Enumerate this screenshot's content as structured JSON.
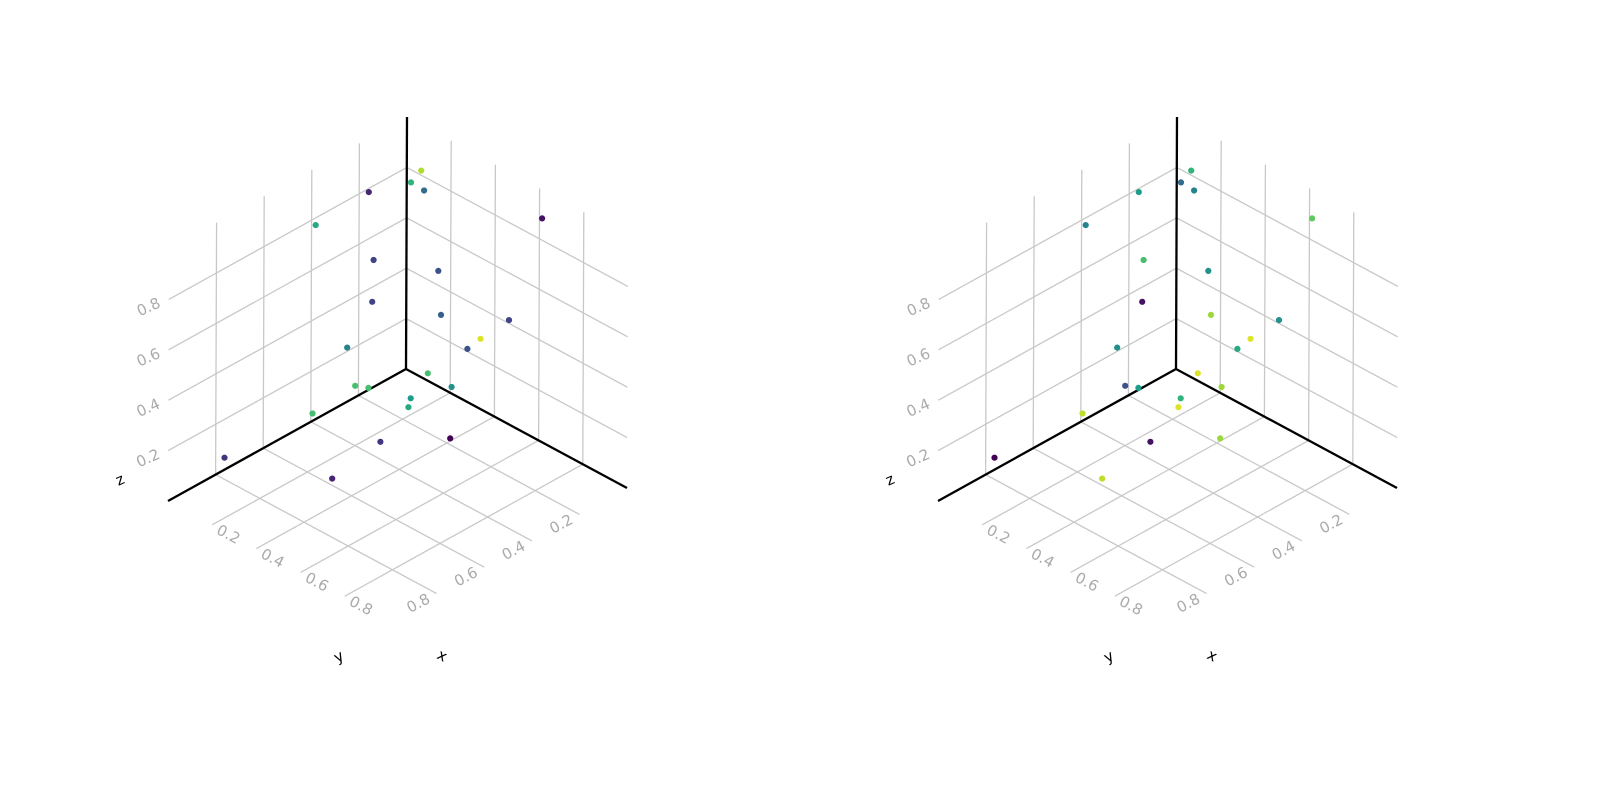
{
  "chart_data": [
    {
      "type": "scatter3d",
      "xlabel": "x",
      "ylabel": "y",
      "zlabel": "z",
      "xlim": [
        0,
        1
      ],
      "ylim": [
        0,
        1
      ],
      "zlim": [
        0,
        1
      ],
      "x_ticks": [
        "0.2",
        "0.4",
        "0.6",
        "0.8"
      ],
      "y_ticks": [
        "0.2",
        "0.4",
        "0.6",
        "0.8"
      ],
      "z_ticks": [
        "0.2",
        "0.4",
        "0.6",
        "0.8"
      ],
      "grid": true,
      "colormap": "viridis",
      "points": [
        {
          "x": 0.73,
          "y": 0.11,
          "z": 1.0,
          "c": 0.05
        },
        {
          "x": 0.7,
          "y": 0.22,
          "z": 0.64,
          "c": 0.2
        },
        {
          "x": 0.62,
          "y": 0.32,
          "z": 0.54,
          "c": 0.25
        },
        {
          "x": 0.71,
          "y": 0.47,
          "z": 0.51,
          "c": 0.5
        },
        {
          "x": 0.59,
          "y": 0.53,
          "z": 0.44,
          "c": 0.55
        },
        {
          "x": 0.58,
          "y": 0.53,
          "z": 0.4,
          "c": 0.6
        },
        {
          "x": 0.71,
          "y": 0.82,
          "z": 0.69,
          "c": 0.7
        },
        {
          "x": 0.65,
          "y": 0.82,
          "z": 0.67,
          "c": 0.7
        },
        {
          "x": 0.93,
          "y": 0.68,
          "z": 0.52,
          "c": 0.0
        },
        {
          "x": 0.69,
          "y": 0.75,
          "z": 0.43,
          "c": 0.15
        },
        {
          "x": 0.49,
          "y": 0.85,
          "z": 0.5,
          "c": 0.7
        },
        {
          "x": 0.43,
          "y": 0.71,
          "z": 0.14,
          "c": 0.1
        },
        {
          "x": 0.19,
          "y": 0.94,
          "z": 0.23,
          "c": 0.15
        },
        {
          "x": 0.14,
          "y": 0.29,
          "z": 0.92,
          "c": 0.1
        },
        {
          "x": 0.04,
          "y": 0.42,
          "z": 0.81,
          "c": 0.6
        },
        {
          "x": 0.12,
          "y": 0.25,
          "z": 0.62,
          "c": 0.2
        },
        {
          "x": 0.25,
          "y": 0.16,
          "z": 0.91,
          "c": 0.35
        },
        {
          "x": 0.14,
          "y": 0.07,
          "z": 0.89,
          "c": 0.88
        },
        {
          "x": 0.23,
          "y": 0.08,
          "z": 0.54,
          "c": 0.25
        },
        {
          "x": 0.03,
          "y": 0.01,
          "z": 0.76,
          "c": 0.65
        },
        {
          "x": 0.05,
          "y": 0.19,
          "z": 0.39,
          "c": 0.2
        },
        {
          "x": 0.12,
          "y": 0.36,
          "z": 0.33,
          "c": 0.45
        },
        {
          "x": 0.4,
          "y": 0.06,
          "z": 0.34,
          "c": 0.95
        },
        {
          "x": 0.2,
          "y": 0.04,
          "z": 0.33,
          "c": 0.3
        },
        {
          "x": 0.12,
          "y": 0.02,
          "z": 0.05,
          "c": 0.7
        }
      ]
    },
    {
      "type": "scatter3d",
      "xlabel": "x",
      "ylabel": "y",
      "zlabel": "z",
      "xlim": [
        0,
        1
      ],
      "ylim": [
        0,
        1
      ],
      "zlim": [
        0,
        1
      ],
      "x_ticks": [
        "0.2",
        "0.4",
        "0.6",
        "0.8"
      ],
      "y_ticks": [
        "0.2",
        "0.4",
        "0.6",
        "0.8"
      ],
      "z_ticks": [
        "0.2",
        "0.4",
        "0.6",
        "0.8"
      ],
      "grid": true,
      "colormap": "viridis",
      "points": [
        {
          "x": 0.73,
          "y": 0.11,
          "z": 1.0,
          "c": 0.75
        },
        {
          "x": 0.7,
          "y": 0.22,
          "z": 0.64,
          "c": 0.5
        },
        {
          "x": 0.62,
          "y": 0.32,
          "z": 0.54,
          "c": 0.6
        },
        {
          "x": 0.71,
          "y": 0.47,
          "z": 0.51,
          "c": 0.85
        },
        {
          "x": 0.59,
          "y": 0.53,
          "z": 0.44,
          "c": 0.65
        },
        {
          "x": 0.58,
          "y": 0.53,
          "z": 0.4,
          "c": 0.95
        },
        {
          "x": 0.71,
          "y": 0.82,
          "z": 0.69,
          "c": 0.55
        },
        {
          "x": 0.65,
          "y": 0.82,
          "z": 0.67,
          "c": 0.25
        },
        {
          "x": 0.93,
          "y": 0.68,
          "z": 0.52,
          "c": 0.85
        },
        {
          "x": 0.69,
          "y": 0.75,
          "z": 0.43,
          "c": 0.05
        },
        {
          "x": 0.49,
          "y": 0.85,
          "z": 0.5,
          "c": 0.9
        },
        {
          "x": 0.43,
          "y": 0.71,
          "z": 0.14,
          "c": 0.9
        },
        {
          "x": 0.19,
          "y": 0.94,
          "z": 0.23,
          "c": 0.0
        },
        {
          "x": 0.14,
          "y": 0.29,
          "z": 0.92,
          "c": 0.55
        },
        {
          "x": 0.04,
          "y": 0.42,
          "z": 0.81,
          "c": 0.45
        },
        {
          "x": 0.12,
          "y": 0.25,
          "z": 0.62,
          "c": 0.7
        },
        {
          "x": 0.25,
          "y": 0.16,
          "z": 0.91,
          "c": 0.45
        },
        {
          "x": 0.14,
          "y": 0.07,
          "z": 0.89,
          "c": 0.65
        },
        {
          "x": 0.23,
          "y": 0.08,
          "z": 0.54,
          "c": 0.5
        },
        {
          "x": 0.03,
          "y": 0.01,
          "z": 0.76,
          "c": 0.35
        },
        {
          "x": 0.05,
          "y": 0.19,
          "z": 0.39,
          "c": 0.05
        },
        {
          "x": 0.12,
          "y": 0.36,
          "z": 0.33,
          "c": 0.5
        },
        {
          "x": 0.4,
          "y": 0.06,
          "z": 0.34,
          "c": 0.95
        },
        {
          "x": 0.2,
          "y": 0.04,
          "z": 0.33,
          "c": 0.85
        },
        {
          "x": 0.12,
          "y": 0.02,
          "z": 0.05,
          "c": 0.95
        }
      ]
    }
  ]
}
